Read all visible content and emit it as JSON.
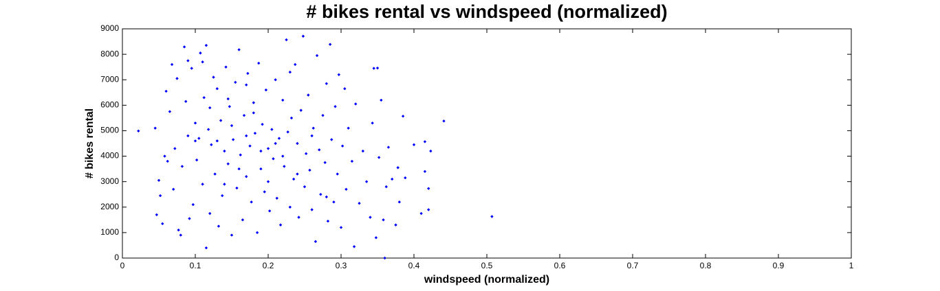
{
  "chart_data": {
    "type": "scatter",
    "title": "# bikes rental vs windspeed (normalized)",
    "x_label": "windspeed (normalized)",
    "y_label": "# bikes rental",
    "color": "#0000ff",
    "xlim": [
      0,
      1
    ],
    "xticks": [
      0,
      0.1,
      0.2,
      0.3,
      0.4,
      0.5,
      0.6,
      0.7,
      0.8,
      0.9,
      1
    ],
    "ylim": [
      0,
      9000
    ],
    "yticks": [
      0,
      1000,
      2000,
      3000,
      4000,
      5000,
      6000,
      7000,
      8000,
      9000
    ],
    "x": [
      0.022,
      0.045,
      0.047,
      0.05,
      0.052,
      0.055,
      0.058,
      0.06,
      0.062,
      0.065,
      0.068,
      0.07,
      0.072,
      0.075,
      0.077,
      0.08,
      0.082,
      0.085,
      0.087,
      0.09,
      0.092,
      0.095,
      0.097,
      0.1,
      0.102,
      0.105,
      0.107,
      0.11,
      0.112,
      0.115,
      0.115,
      0.118,
      0.12,
      0.122,
      0.125,
      0.127,
      0.13,
      0.132,
      0.135,
      0.137,
      0.14,
      0.142,
      0.145,
      0.147,
      0.15,
      0.152,
      0.155,
      0.157,
      0.16,
      0.162,
      0.165,
      0.167,
      0.17,
      0.172,
      0.175,
      0.177,
      0.18,
      0.182,
      0.185,
      0.187,
      0.19,
      0.192,
      0.195,
      0.197,
      0.2,
      0.202,
      0.205,
      0.207,
      0.21,
      0.212,
      0.215,
      0.217,
      0.22,
      0.222,
      0.225,
      0.227,
      0.23,
      0.232,
      0.235,
      0.237,
      0.24,
      0.242,
      0.245,
      0.248,
      0.25,
      0.252,
      0.255,
      0.257,
      0.26,
      0.262,
      0.265,
      0.267,
      0.27,
      0.272,
      0.275,
      0.278,
      0.28,
      0.282,
      0.285,
      0.287,
      0.29,
      0.292,
      0.295,
      0.297,
      0.3,
      0.302,
      0.305,
      0.307,
      0.31,
      0.315,
      0.318,
      0.32,
      0.325,
      0.33,
      0.335,
      0.34,
      0.343,
      0.345,
      0.348,
      0.35,
      0.352,
      0.355,
      0.358,
      0.36,
      0.362,
      0.365,
      0.37,
      0.375,
      0.378,
      0.38,
      0.385,
      0.388,
      0.4,
      0.41,
      0.415,
      0.415,
      0.42,
      0.42,
      0.423,
      0.441,
      0.507,
      0.13,
      0.15,
      0.17,
      0.19,
      0.21,
      0.16,
      0.2,
      0.14,
      0.18,
      0.22,
      0.12,
      0.1,
      0.24,
      0.26,
      0.28,
      0.11,
      0.09,
      0.17,
      0.23,
      0.145
    ],
    "values": [
      4990,
      5100,
      1700,
      3050,
      2450,
      1350,
      4000,
      6550,
      3800,
      5750,
      7600,
      2700,
      4300,
      7050,
      1100,
      900,
      3600,
      8290,
      6150,
      4800,
      1550,
      7450,
      2100,
      5300,
      3850,
      4700,
      8050,
      2900,
      6300,
      8350,
      400,
      5050,
      1750,
      4450,
      7100,
      3300,
      6650,
      1250,
      5400,
      2450,
      4200,
      7500,
      3700,
      5950,
      900,
      4650,
      6900,
      2750,
      8180,
      4050,
      1500,
      5600,
      3200,
      7250,
      4400,
      2200,
      6100,
      4900,
      1000,
      7650,
      3500,
      5250,
      2600,
      6600,
      4300,
      1850,
      5050,
      3900,
      7000,
      2350,
      4700,
      1300,
      6200,
      3600,
      8570,
      4950,
      2000,
      5500,
      3100,
      7600,
      4500,
      1600,
      5800,
      8710,
      2800,
      4100,
      6400,
      3450,
      1900,
      5100,
      650,
      7950,
      4250,
      2500,
      5600,
      3750,
      6850,
      1450,
      8390,
      4650,
      2200,
      5950,
      3300,
      7200,
      1200,
      4400,
      6650,
      2700,
      5100,
      3800,
      450,
      6050,
      2150,
      4200,
      3000,
      1600,
      5300,
      7450,
      800,
      7460,
      3950,
      6200,
      1500,
      0,
      2800,
      4350,
      3100,
      1300,
      3550,
      2200,
      5570,
      3150,
      4450,
      1750,
      4570,
      3400,
      1900,
      2730,
      4200,
      5380,
      1630,
      4600,
      5200,
      4800,
      4200,
      4500,
      3500,
      3000,
      2900,
      5700,
      4000,
      5900,
      4600,
      3300,
      4800,
      2400,
      7700,
      7750,
      6800,
      7300,
      6250
    ]
  }
}
